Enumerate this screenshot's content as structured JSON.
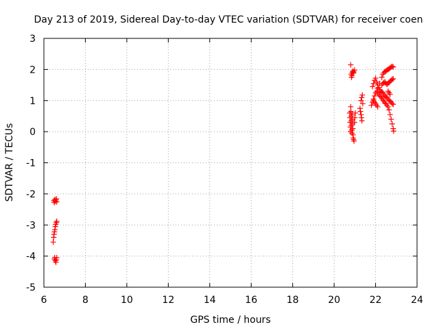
{
  "chart_data": {
    "type": "scatter",
    "title": "Day 213 of 2019, Sidereal Day-to-day VTEC variation (SDTVAR) for receiver coen",
    "xlabel": "GPS time / hours",
    "ylabel": "SDTVAR / TECUs",
    "xlim": [
      6,
      24
    ],
    "ylim": [
      -5,
      3
    ],
    "xticks": [
      "6",
      "8",
      "10",
      "12",
      "14",
      "16",
      "18",
      "20",
      "22",
      "24"
    ],
    "yticks": [
      "3",
      "2",
      "1",
      "0",
      "-1",
      "-2",
      "-3",
      "-4",
      "-5"
    ],
    "grid": true,
    "marker": "plus",
    "color": "#ff0000",
    "series": [
      {
        "points": [
          [
            6.48,
            -2.22
          ],
          [
            6.52,
            -2.18
          ],
          [
            6.55,
            -2.24
          ],
          [
            6.58,
            -2.2
          ],
          [
            6.62,
            -2.26
          ],
          [
            6.5,
            -2.28
          ],
          [
            6.6,
            -2.16
          ],
          [
            6.45,
            -3.55
          ],
          [
            6.47,
            -3.4
          ],
          [
            6.49,
            -3.3
          ],
          [
            6.51,
            -3.22
          ],
          [
            6.53,
            -3.15
          ],
          [
            6.55,
            -3.05
          ],
          [
            6.57,
            -2.98
          ],
          [
            6.6,
            -2.92
          ],
          [
            6.62,
            -2.88
          ],
          [
            6.5,
            -4.1
          ],
          [
            6.52,
            -4.05
          ],
          [
            6.55,
            -4.15
          ],
          [
            6.58,
            -4.2
          ],
          [
            6.6,
            -4.12
          ],
          [
            6.62,
            -4.05
          ],
          [
            20.8,
            2.15
          ],
          [
            20.82,
            1.85
          ],
          [
            20.84,
            1.75
          ],
          [
            20.86,
            1.8
          ],
          [
            20.88,
            1.9
          ],
          [
            20.9,
            1.95
          ],
          [
            20.93,
            1.88
          ],
          [
            20.95,
            1.92
          ],
          [
            20.98,
            1.98
          ],
          [
            20.75,
            0.6
          ],
          [
            20.76,
            0.45
          ],
          [
            20.77,
            0.3
          ],
          [
            20.78,
            0.15
          ],
          [
            20.79,
            0.0
          ],
          [
            20.8,
            0.8
          ],
          [
            20.81,
            0.65
          ],
          [
            20.82,
            0.5
          ],
          [
            20.83,
            0.35
          ],
          [
            20.84,
            0.2
          ],
          [
            20.85,
            0.05
          ],
          [
            20.86,
            -0.05
          ],
          [
            20.87,
            0.55
          ],
          [
            20.88,
            0.4
          ],
          [
            20.89,
            0.25
          ],
          [
            20.9,
            0.1
          ],
          [
            20.91,
            -0.1
          ],
          [
            20.92,
            -0.2
          ],
          [
            20.94,
            -0.25
          ],
          [
            20.96,
            -0.3
          ],
          [
            20.98,
            0.3
          ],
          [
            21.0,
            0.45
          ],
          [
            21.02,
            0.6
          ],
          [
            21.25,
            0.75
          ],
          [
            21.27,
            0.65
          ],
          [
            21.3,
            0.55
          ],
          [
            21.32,
            0.45
          ],
          [
            21.34,
            0.35
          ],
          [
            21.3,
            1.0
          ],
          [
            21.33,
            1.1
          ],
          [
            21.36,
            1.18
          ],
          [
            21.38,
            0.9
          ],
          [
            21.8,
            0.85
          ],
          [
            21.85,
            0.95
          ],
          [
            21.9,
            1.05
          ],
          [
            21.95,
            1.15
          ],
          [
            22.0,
            1.25
          ],
          [
            22.05,
            1.3
          ],
          [
            22.1,
            1.25
          ],
          [
            22.15,
            1.2
          ],
          [
            22.2,
            1.15
          ],
          [
            22.25,
            1.12
          ],
          [
            22.3,
            1.08
          ],
          [
            22.35,
            1.02
          ],
          [
            22.4,
            0.98
          ],
          [
            22.45,
            0.92
          ],
          [
            22.5,
            0.9
          ],
          [
            22.55,
            0.85
          ],
          [
            22.6,
            0.8
          ],
          [
            22.65,
            0.7
          ],
          [
            22.7,
            0.55
          ],
          [
            22.75,
            0.4
          ],
          [
            22.8,
            0.25
          ],
          [
            22.85,
            0.1
          ],
          [
            22.87,
            0.02
          ],
          [
            21.85,
            1.45
          ],
          [
            21.9,
            1.55
          ],
          [
            21.95,
            1.65
          ],
          [
            22.0,
            1.72
          ],
          [
            22.05,
            1.6
          ],
          [
            22.1,
            1.5
          ],
          [
            22.15,
            1.42
          ],
          [
            22.2,
            1.35
          ],
          [
            22.25,
            1.3
          ],
          [
            22.3,
            1.28
          ],
          [
            22.35,
            1.25
          ],
          [
            22.4,
            1.2
          ],
          [
            22.45,
            1.15
          ],
          [
            22.5,
            1.12
          ],
          [
            22.55,
            1.1
          ],
          [
            22.6,
            1.05
          ],
          [
            22.65,
            1.0
          ],
          [
            22.7,
            0.98
          ],
          [
            22.75,
            0.95
          ],
          [
            22.8,
            0.9
          ],
          [
            22.85,
            0.88
          ],
          [
            22.1,
            1.4
          ],
          [
            22.2,
            1.55
          ],
          [
            22.3,
            1.75
          ],
          [
            22.35,
            1.85
          ],
          [
            22.4,
            1.9
          ],
          [
            22.45,
            1.93
          ],
          [
            22.5,
            1.95
          ],
          [
            22.55,
            1.98
          ],
          [
            22.6,
            2.0
          ],
          [
            22.65,
            2.02
          ],
          [
            22.7,
            2.05
          ],
          [
            22.75,
            2.08
          ],
          [
            22.8,
            2.1
          ],
          [
            22.85,
            2.08
          ],
          [
            22.3,
            1.5
          ],
          [
            22.35,
            1.55
          ],
          [
            22.4,
            1.58
          ],
          [
            22.45,
            1.6
          ],
          [
            22.5,
            1.55
          ],
          [
            22.55,
            1.52
          ],
          [
            22.6,
            1.55
          ],
          [
            22.65,
            1.58
          ],
          [
            22.7,
            1.62
          ],
          [
            22.75,
            1.65
          ],
          [
            22.8,
            1.68
          ],
          [
            22.85,
            1.7
          ],
          [
            21.9,
            1.0
          ],
          [
            21.95,
            0.95
          ],
          [
            22.0,
            0.9
          ],
          [
            22.05,
            0.85
          ],
          [
            22.1,
            0.8
          ],
          [
            22.6,
            1.3
          ],
          [
            22.65,
            1.25
          ],
          [
            22.7,
            1.2
          ]
        ]
      }
    ]
  }
}
